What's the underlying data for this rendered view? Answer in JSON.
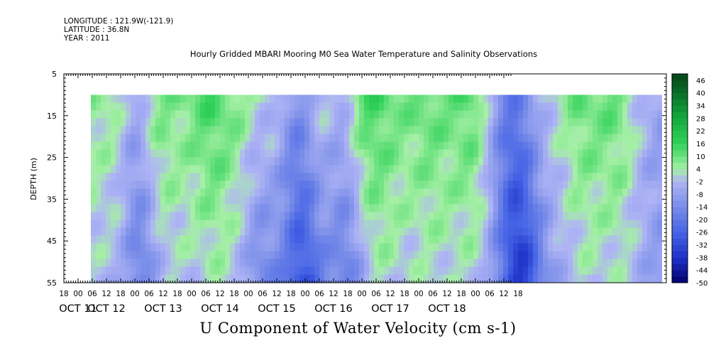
{
  "header": {
    "longitude": "LONGITUDE : 121.9W(-121.9)",
    "latitude": "LATITUDE : 36.8N",
    "year": "YEAR : 2011",
    "title": "Hourly Gridded MBARI Mooring M0 Sea Water Temperature and Salinity Observations"
  },
  "chart_data": {
    "type": "heatmap",
    "title": "Hourly Gridded MBARI Mooring M0 Sea Water Temperature and Salinity Observations",
    "variable_label": "U Component of Water Velocity (cm s-1)",
    "xlabel": "",
    "ylabel": "DEPTH (m)",
    "ylim": [
      5,
      55
    ],
    "y_inverted": true,
    "y_ticks": [
      5,
      15,
      25,
      35,
      45,
      55
    ],
    "data_depth_range": [
      10,
      55
    ],
    "hour_ticks": [
      "18",
      "00",
      "06",
      "12",
      "18",
      "00",
      "06",
      "12",
      "18",
      "00",
      "06",
      "12",
      "18",
      "00",
      "06",
      "12",
      "18",
      "00",
      "06",
      "12",
      "18",
      "00",
      "06",
      "12",
      "18",
      "00",
      "06",
      "12",
      "18",
      "00",
      "06",
      "12",
      "18"
    ],
    "date_labels": [
      {
        "label": "OCT 11",
        "tick_index": 1
      },
      {
        "label": "OCT 12",
        "tick_index": 3
      },
      {
        "label": "OCT 13",
        "tick_index": 7
      },
      {
        "label": "OCT 14",
        "tick_index": 11
      },
      {
        "label": "OCT 15",
        "tick_index": 15
      },
      {
        "label": "OCT 16",
        "tick_index": 19
      },
      {
        "label": "OCT 17",
        "tick_index": 23
      },
      {
        "label": "OCT 18",
        "tick_index": 27
      }
    ],
    "colorbar": {
      "min": -50,
      "max": 49,
      "step": 3,
      "labels": [
        "46",
        "40",
        "34",
        "28",
        "22",
        "16",
        "10",
        "4",
        "-2",
        "-8",
        "-14",
        "-20",
        "-26",
        "-32",
        "-38",
        "-44",
        "-50"
      ]
    },
    "bands": [
      {
        "x": -6,
        "d": 22,
        "v": 14
      },
      {
        "x": 13,
        "d": 20,
        "v": 12
      },
      {
        "x": 24,
        "d": 18,
        "v": -12
      },
      {
        "x": 37,
        "d": 25,
        "v": 16
      },
      {
        "x": 54,
        "d": 20,
        "v": 8
      },
      {
        "x": 66,
        "d": 20,
        "v": 15
      },
      {
        "x": 78,
        "d": 30,
        "v": 4
      },
      {
        "x": 84,
        "d": 22,
        "v": 14
      },
      {
        "x": 90,
        "d": 20,
        "v": -12
      },
      {
        "x": 102,
        "d": 22,
        "v": 12
      },
      {
        "x": 114,
        "d": 24,
        "v": -22
      },
      {
        "x": 126,
        "d": 22,
        "v": 14
      },
      {
        "x": 138,
        "d": 20,
        "v": -12
      },
      {
        "x": 150,
        "d": 24,
        "v": 16
      },
      {
        "x": 162,
        "d": 25,
        "v": 10
      },
      {
        "x": 174,
        "d": 25,
        "v": 6
      },
      {
        "x": 186,
        "d": 24,
        "v": 12
      },
      {
        "x": 198,
        "d": 25,
        "v": 8
      },
      {
        "x": 210,
        "d": 20,
        "v": 14
      },
      {
        "x": 222,
        "d": 22,
        "v": 4
      },
      {
        "x": 234,
        "d": 24,
        "v": -26
      },
      {
        "x": 246,
        "d": 25,
        "v": 6
      },
      {
        "x": 258,
        "d": 28,
        "v": 4
      },
      {
        "x": 270,
        "d": 20,
        "v": 12
      },
      {
        "x": 282,
        "d": 24,
        "v": 6
      },
      {
        "x": 290,
        "d": 22,
        "v": 12
      },
      {
        "x": 302,
        "d": 24,
        "v": 4
      },
      {
        "x": 310,
        "d": 30,
        "v": -2
      }
    ]
  }
}
